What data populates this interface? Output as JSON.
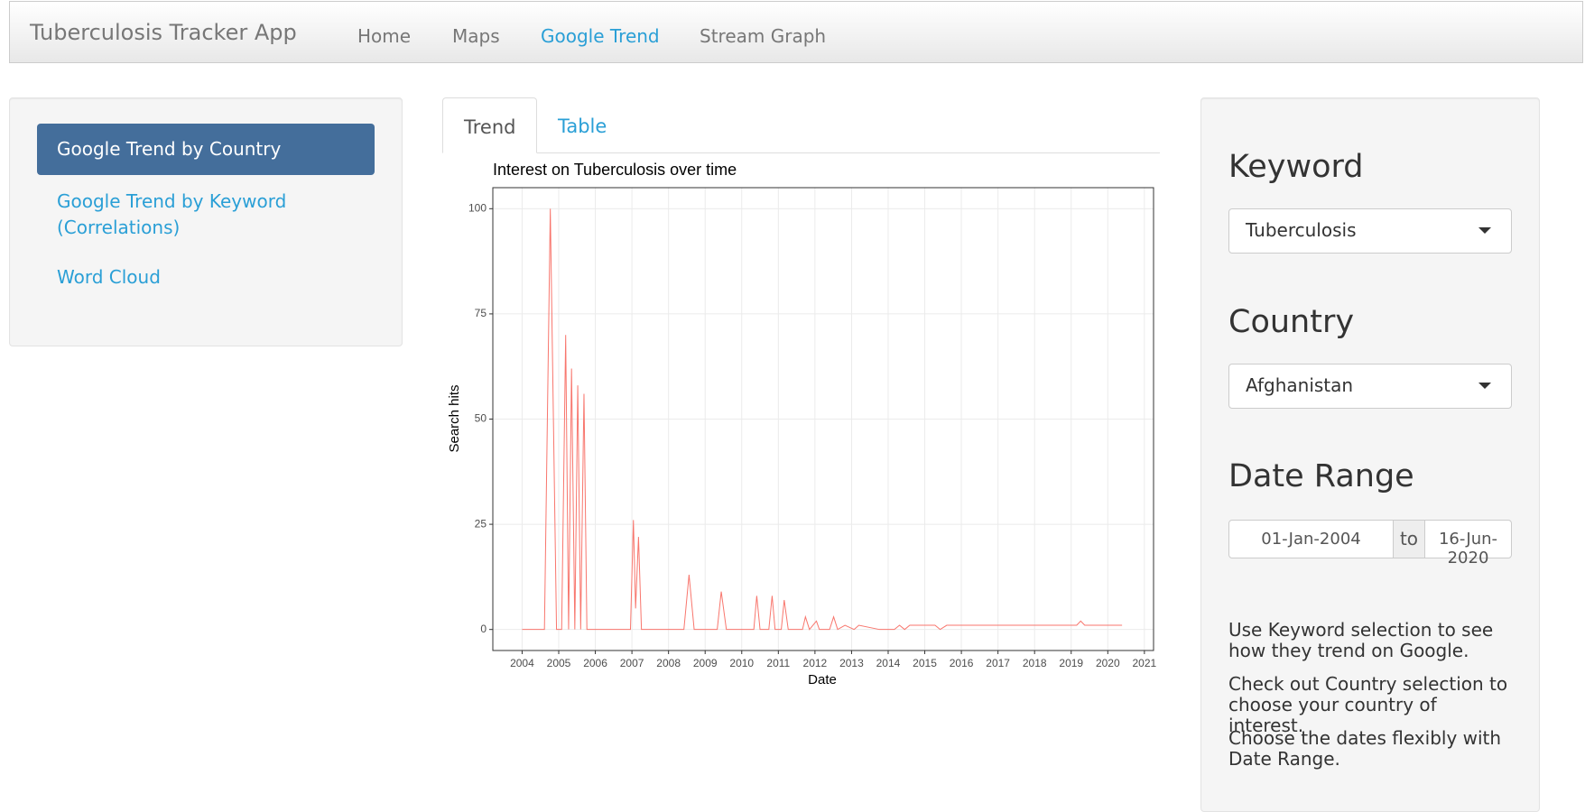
{
  "navbar": {
    "brand": "Tuberculosis Tracker App",
    "items": [
      "Home",
      "Maps",
      "Google Trend",
      "Stream Graph"
    ],
    "active": 2
  },
  "sidebar": {
    "items": [
      "Google Trend by Country",
      "Google Trend by Keyword (Correlations)",
      "Word Cloud"
    ],
    "active": 0
  },
  "tabs": {
    "items": [
      "Trend",
      "Table"
    ],
    "active": 0
  },
  "chart_data": {
    "type": "line",
    "title": "Interest on Tuberculosis  over time",
    "x_label": "Date",
    "y_label": "Search hits",
    "color": "#f8766d",
    "x": [
      2004.0,
      2004.61,
      2004.77,
      2004.94,
      2005.08,
      2005.19,
      2005.27,
      2005.35,
      2005.44,
      2005.52,
      2005.6,
      2005.69,
      2005.77,
      2006.96,
      2007.04,
      2007.1,
      2007.18,
      2007.26,
      2008.42,
      2008.56,
      2008.7,
      2009.33,
      2009.44,
      2009.58,
      2010.33,
      2010.41,
      2010.5,
      2010.74,
      2010.83,
      2010.91,
      2011.08,
      2011.16,
      2011.27,
      2011.66,
      2011.74,
      2011.85,
      2012.04,
      2012.12,
      2012.4,
      2012.51,
      2012.62,
      2012.82,
      2013.07,
      2013.2,
      2013.76,
      2014.17,
      2014.31,
      2014.45,
      2014.59,
      2015.28,
      2015.42,
      2015.6,
      2018.46,
      2019.15,
      2019.26,
      2019.37,
      2020.39
    ],
    "values": [
      0,
      0,
      100,
      0,
      0,
      70,
      0,
      62,
      0,
      58,
      0,
      56,
      0,
      0,
      26,
      5,
      22,
      0,
      0,
      13,
      0,
      0,
      9,
      0,
      0,
      8,
      0,
      0,
      8,
      0,
      0,
      7,
      0,
      0,
      3,
      0,
      2,
      0,
      0,
      3,
      0,
      1,
      0,
      1,
      0,
      0,
      1,
      0,
      1,
      1,
      0,
      1,
      1,
      1,
      2,
      1,
      1
    ],
    "xlim": [
      2003.2,
      2021.25
    ],
    "ylim": [
      -5,
      105
    ],
    "xticks": [
      2004,
      2005,
      2006,
      2007,
      2008,
      2009,
      2010,
      2011,
      2012,
      2013,
      2014,
      2015,
      2016,
      2017,
      2018,
      2019,
      2020,
      2021
    ],
    "yticks": [
      0,
      25,
      50,
      75,
      100
    ],
    "grid": true
  },
  "controls": {
    "keyword_label": "Keyword",
    "keyword_value": "Tuberculosis",
    "country_label": "Country",
    "country_value": "Afghanistan",
    "date_label": "Date Range",
    "date_start": "01-Jan-2004",
    "date_sep": "to",
    "date_end": "16-Jun-2020",
    "help": [
      "Use Keyword selection to see how they trend on Google.",
      "Check out Country selection to choose your country of interest.",
      "Choose the dates flexibly with Date Range."
    ]
  }
}
